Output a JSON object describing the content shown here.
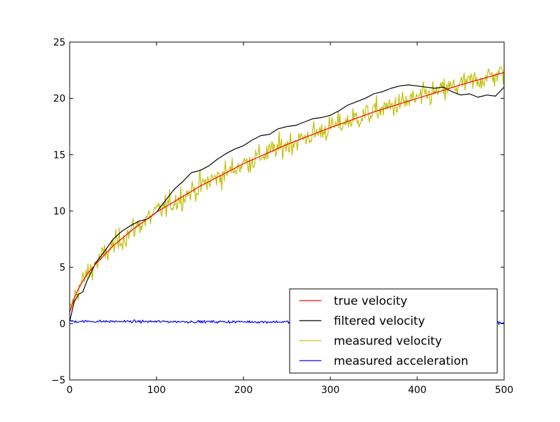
{
  "chart_data": {
    "type": "line",
    "title": "",
    "xlabel": "",
    "ylabel": "",
    "xlim": [
      0,
      500
    ],
    "ylim": [
      -5,
      25
    ],
    "xticks": [
      0,
      100,
      200,
      300,
      400,
      500
    ],
    "yticks": [
      -5,
      0,
      5,
      10,
      15,
      20,
      25
    ],
    "xtick_labels": [
      "0",
      "100",
      "200",
      "300",
      "400",
      "500"
    ],
    "ytick_labels": [
      "−5",
      "0",
      "5",
      "10",
      "15",
      "20",
      "25"
    ],
    "grid": false,
    "legend_position": "bottom-right",
    "series": [
      {
        "name": "true velocity",
        "color": "#ff0000",
        "x": [
          0,
          5,
          10,
          20,
          30,
          50,
          75,
          100,
          150,
          200,
          250,
          300,
          350,
          400,
          450,
          500
        ],
        "y": [
          1.0,
          2.2,
          3.1,
          4.4,
          5.3,
          6.9,
          8.5,
          9.9,
          12.2,
          14.2,
          15.9,
          17.4,
          18.8,
          20.0,
          21.2,
          22.3
        ]
      },
      {
        "name": "filtered velocity",
        "color": "#000000",
        "x": [
          0,
          3,
          5,
          10,
          15,
          20,
          30,
          40,
          50,
          60,
          70,
          80,
          90,
          100,
          110,
          120,
          130,
          140,
          150,
          160,
          170,
          180,
          190,
          200,
          210,
          220,
          230,
          240,
          250,
          260,
          270,
          280,
          290,
          300,
          310,
          320,
          330,
          340,
          350,
          360,
          370,
          380,
          390,
          400,
          410,
          420,
          430,
          440,
          450,
          460,
          470,
          480,
          490,
          500
        ],
        "y": [
          0.2,
          1.2,
          1.9,
          2.6,
          2.8,
          3.8,
          5.4,
          6.4,
          7.5,
          8.2,
          8.7,
          9.1,
          9.3,
          9.9,
          10.9,
          11.9,
          12.6,
          13.4,
          13.6,
          14.0,
          14.6,
          15.1,
          15.5,
          15.8,
          16.3,
          16.7,
          16.8,
          17.3,
          17.5,
          17.6,
          17.9,
          18.2,
          18.3,
          18.5,
          18.9,
          19.4,
          19.7,
          20.0,
          20.4,
          20.6,
          20.9,
          21.1,
          21.2,
          21.1,
          21.0,
          20.9,
          21.0,
          20.6,
          20.3,
          20.4,
          20.1,
          20.3,
          20.2,
          21.0
        ]
      },
      {
        "name": "measured velocity",
        "color": "#bfbf00",
        "trend_x": [
          0,
          5,
          10,
          20,
          30,
          50,
          75,
          100,
          150,
          200,
          250,
          300,
          350,
          400,
          450,
          500
        ],
        "trend_y": [
          1.0,
          2.2,
          3.1,
          4.4,
          5.3,
          6.9,
          8.5,
          9.9,
          12.2,
          14.2,
          15.9,
          17.4,
          18.8,
          20.0,
          21.2,
          22.3
        ],
        "noise_sd": 0.75
      },
      {
        "name": "measured acceleration",
        "color": "#0000ff",
        "x": [
          0,
          2,
          500
        ],
        "y": [
          0.4,
          0.2,
          0.1
        ],
        "noise_sd": 0.08
      }
    ]
  }
}
